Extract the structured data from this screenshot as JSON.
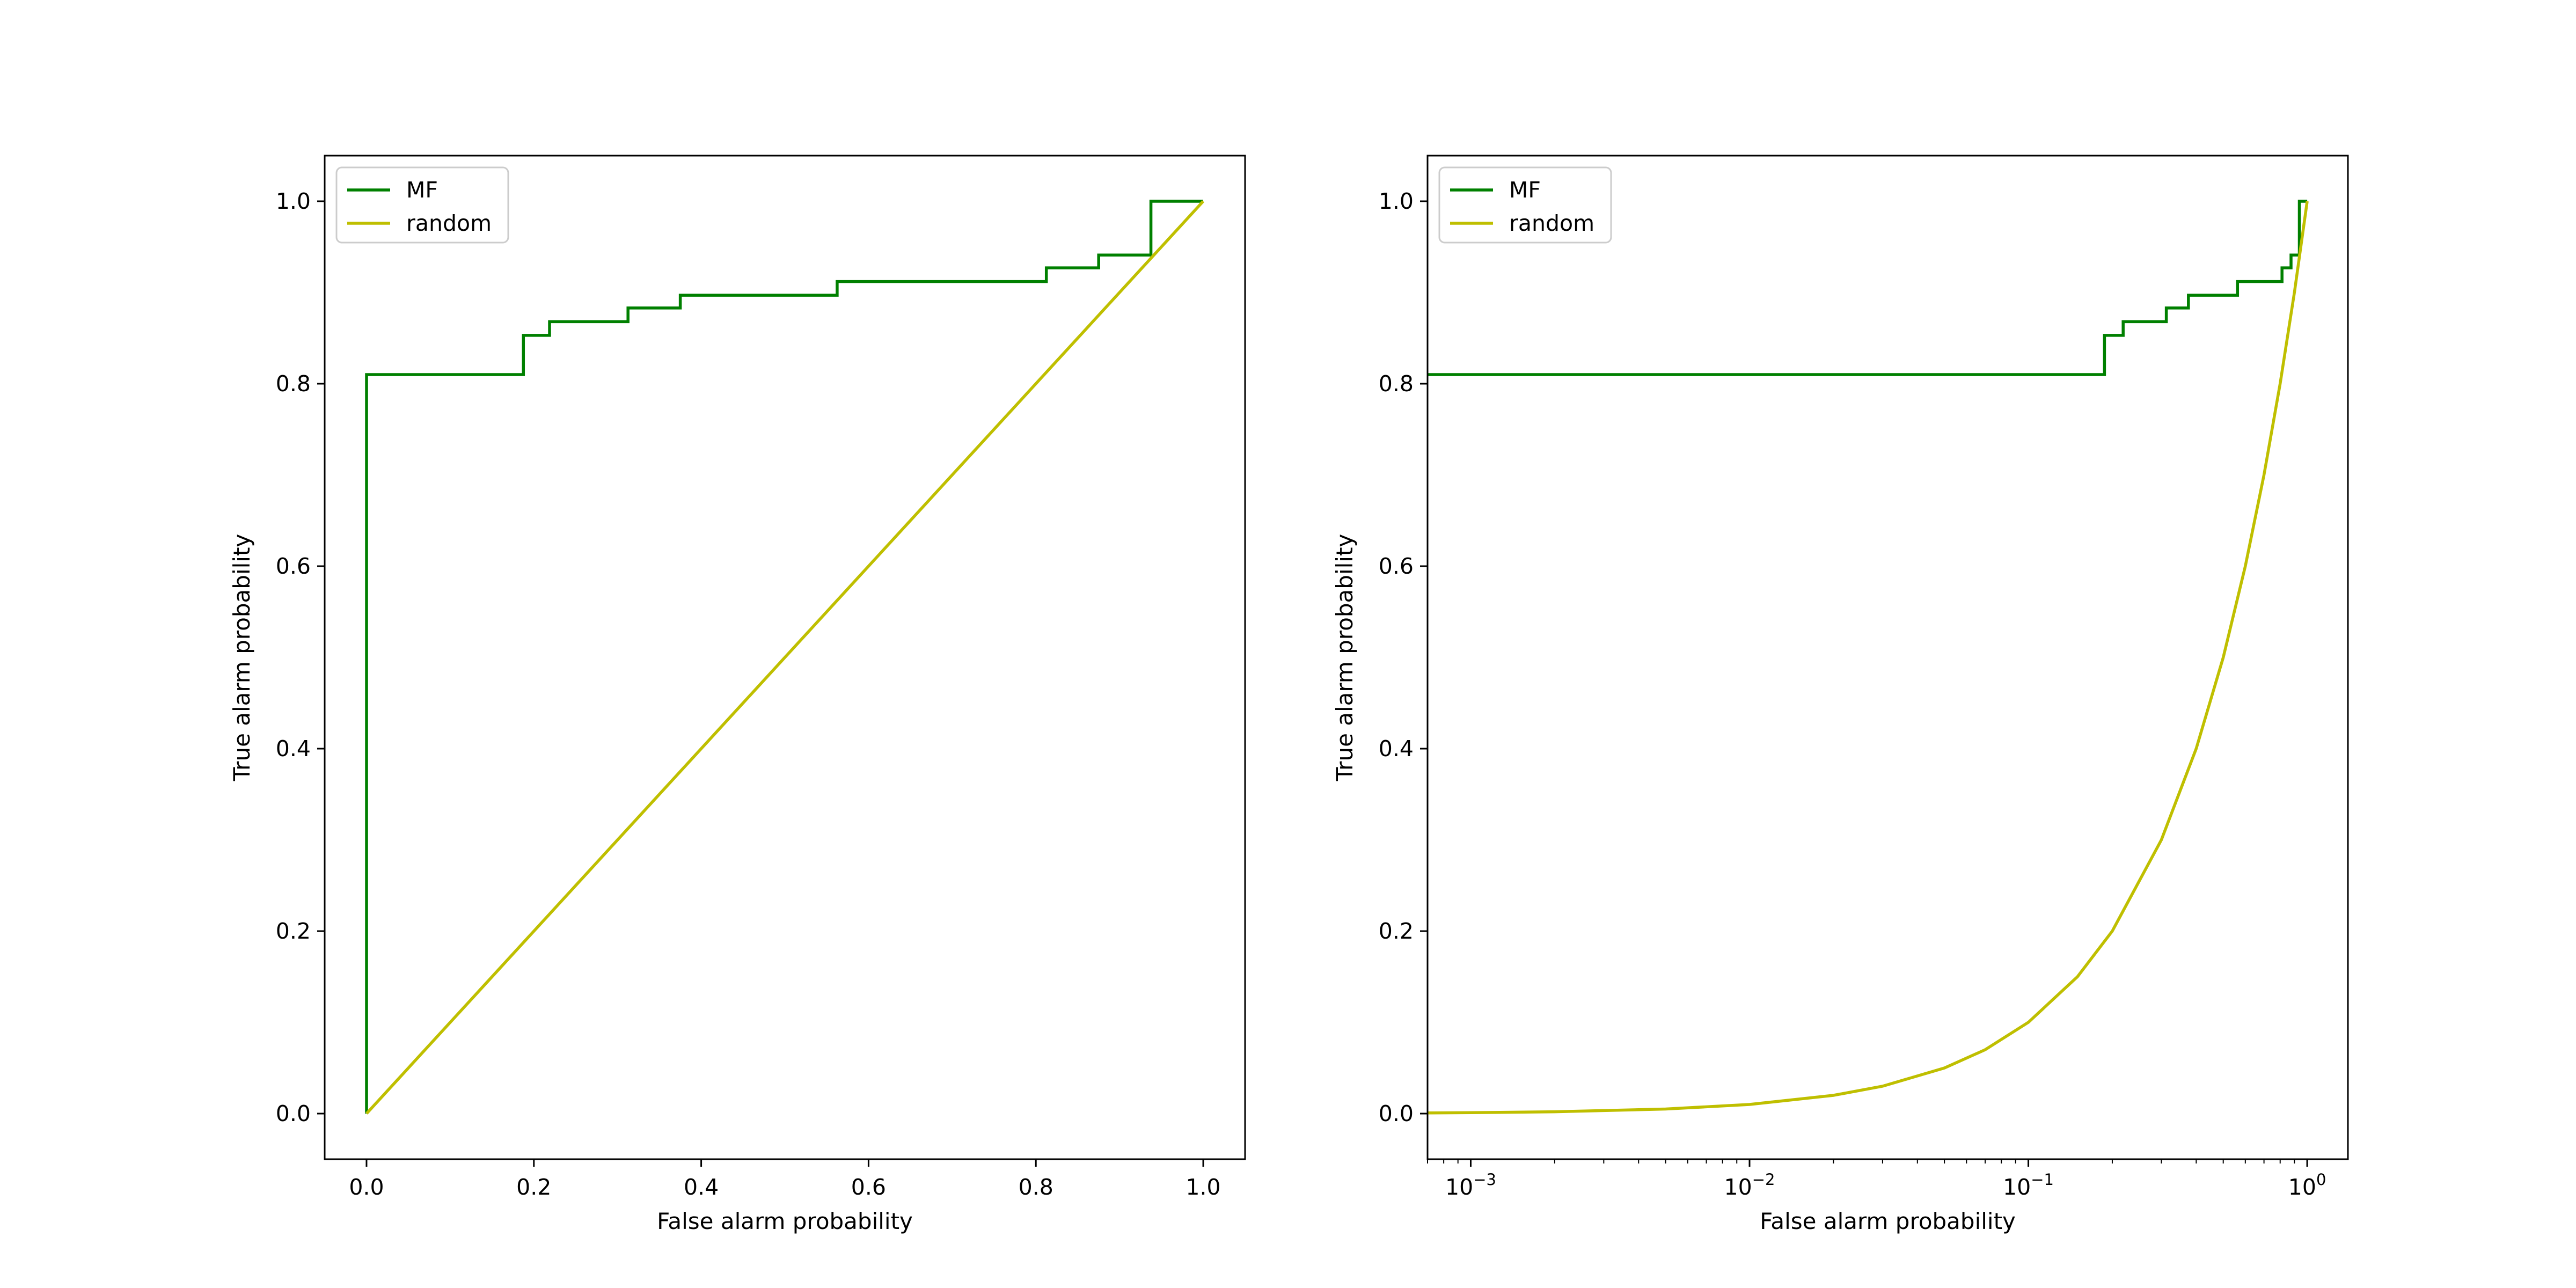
{
  "chart_data": [
    {
      "type": "line",
      "xlabel": "False alarm probability",
      "ylabel": "True alarm probability",
      "xscale": "linear",
      "xlim": [
        -0.05,
        1.05
      ],
      "ylim": [
        -0.05,
        1.05
      ],
      "xticks": [
        {
          "value": 0.0,
          "label": "0.0"
        },
        {
          "value": 0.2,
          "label": "0.2"
        },
        {
          "value": 0.4,
          "label": "0.4"
        },
        {
          "value": 0.6,
          "label": "0.6"
        },
        {
          "value": 0.8,
          "label": "0.8"
        },
        {
          "value": 1.0,
          "label": "1.0"
        }
      ],
      "yticks": [
        {
          "value": 0.0,
          "label": "0.0"
        },
        {
          "value": 0.2,
          "label": "0.2"
        },
        {
          "value": 0.4,
          "label": "0.4"
        },
        {
          "value": 0.6,
          "label": "0.6"
        },
        {
          "value": 0.8,
          "label": "0.8"
        },
        {
          "value": 1.0,
          "label": "1.0"
        }
      ],
      "legend_position": "top-left",
      "grid": false,
      "series": [
        {
          "name": "MF",
          "color": "#008000",
          "draw": "step",
          "x": [
            0.0,
            0.0,
            0.1875,
            0.1875,
            0.21875,
            0.21875,
            0.3125,
            0.3125,
            0.375,
            0.375,
            0.5625,
            0.5625,
            0.8125,
            0.8125,
            0.875,
            0.875,
            0.9375,
            0.9375,
            1.0
          ],
          "y": [
            0.0,
            0.81,
            0.81,
            0.853,
            0.853,
            0.868,
            0.868,
            0.883,
            0.883,
            0.897,
            0.897,
            0.912,
            0.912,
            0.927,
            0.927,
            0.941,
            0.941,
            1.0,
            1.0
          ]
        },
        {
          "name": "random",
          "color": "#bfbf00",
          "draw": "line",
          "x": [
            0.0,
            1.0
          ],
          "y": [
            0.0,
            1.0
          ]
        }
      ]
    },
    {
      "type": "line",
      "xlabel": "False alarm probability",
      "ylabel": "True alarm probability",
      "xscale": "log",
      "xlim": [
        0.0007,
        1.4
      ],
      "ylim": [
        -0.05,
        1.05
      ],
      "xticks": [
        {
          "value": 0.001,
          "base": "10",
          "exp": "−3"
        },
        {
          "value": 0.01,
          "base": "10",
          "exp": "−2"
        },
        {
          "value": 0.1,
          "base": "10",
          "exp": "−1"
        },
        {
          "value": 1.0,
          "base": "10",
          "exp": "0"
        }
      ],
      "yticks": [
        {
          "value": 0.0,
          "label": "0.0"
        },
        {
          "value": 0.2,
          "label": "0.2"
        },
        {
          "value": 0.4,
          "label": "0.4"
        },
        {
          "value": 0.6,
          "label": "0.6"
        },
        {
          "value": 0.8,
          "label": "0.8"
        },
        {
          "value": 1.0,
          "label": "1.0"
        }
      ],
      "legend_position": "top-left",
      "grid": false,
      "series": [
        {
          "name": "MF",
          "color": "#008000",
          "draw": "step",
          "x": [
            0.0007,
            0.1875,
            0.1875,
            0.21875,
            0.21875,
            0.3125,
            0.3125,
            0.375,
            0.375,
            0.5625,
            0.5625,
            0.8125,
            0.8125,
            0.875,
            0.875,
            0.9375,
            0.9375,
            1.0
          ],
          "y": [
            0.81,
            0.81,
            0.853,
            0.853,
            0.868,
            0.868,
            0.883,
            0.883,
            0.897,
            0.897,
            0.912,
            0.912,
            0.927,
            0.927,
            0.941,
            0.941,
            1.0,
            1.0
          ]
        },
        {
          "name": "random",
          "color": "#bfbf00",
          "draw": "line",
          "x": [
            0.0007,
            0.001,
            0.002,
            0.005,
            0.01,
            0.02,
            0.03,
            0.05,
            0.07,
            0.1,
            0.15,
            0.2,
            0.3,
            0.4,
            0.5,
            0.6,
            0.7,
            0.8,
            0.9,
            1.0
          ],
          "y": [
            0.0007,
            0.001,
            0.002,
            0.005,
            0.01,
            0.02,
            0.03,
            0.05,
            0.07,
            0.1,
            0.15,
            0.2,
            0.3,
            0.4,
            0.5,
            0.6,
            0.7,
            0.8,
            0.9,
            1.0
          ]
        }
      ]
    }
  ]
}
